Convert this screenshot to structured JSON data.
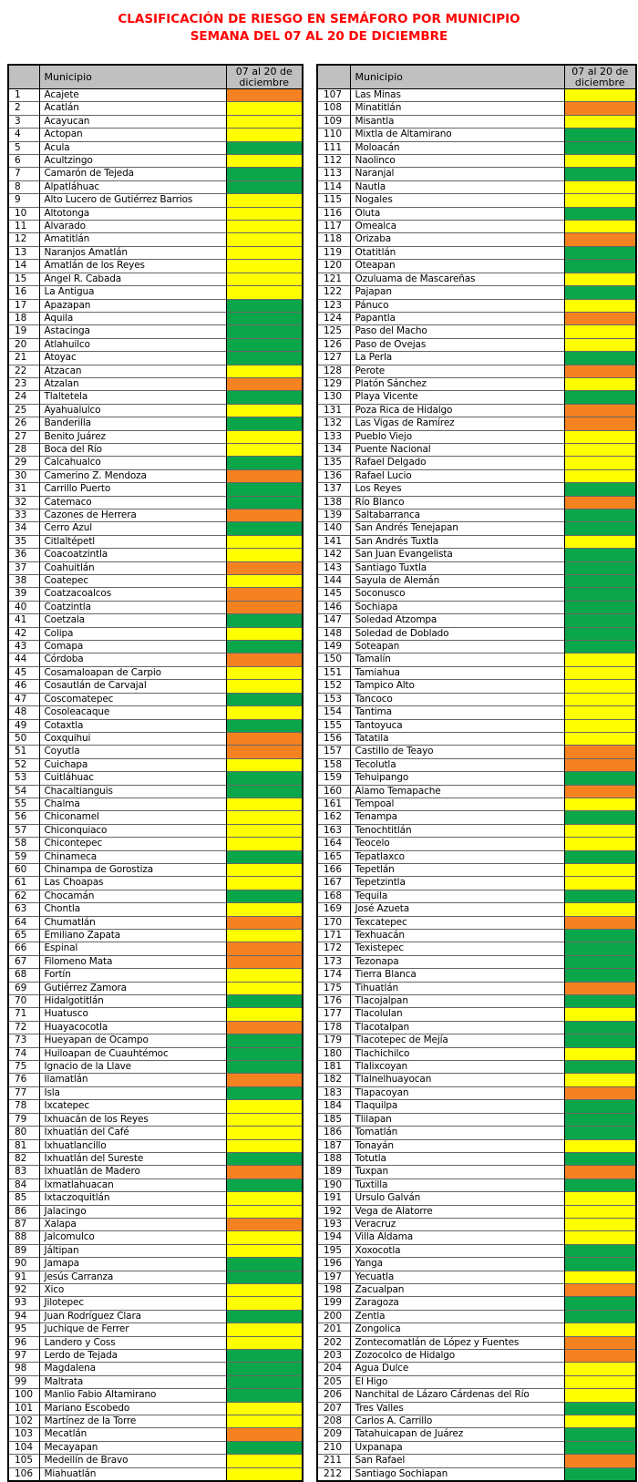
{
  "title": {
    "line1": "CLASIFICACIÓN DE RIESGO EN SEMÁFORO POR MUNICIPIO",
    "line2": "SEMANA DEL 07 AL 20 DE DICIEMBRE"
  },
  "title_color": "#FF0000",
  "column_headers": {
    "municipio": "Municipio",
    "period": "07 al 20 de diciembre"
  },
  "status_colors": {
    "green": "#0CA64A",
    "yellow": "#FFFF00",
    "orange": "#F58220",
    "header_bg": "#C0C0C0"
  },
  "tables": [
    {
      "rows": [
        [
          1,
          "Acajete",
          "orange"
        ],
        [
          2,
          "Acatlán",
          "yellow"
        ],
        [
          3,
          "Acayucan",
          "yellow"
        ],
        [
          4,
          "Actopan",
          "yellow"
        ],
        [
          5,
          "Acula",
          "green"
        ],
        [
          6,
          "Acultzingo",
          "yellow"
        ],
        [
          7,
          "Camarón de Tejeda",
          "green"
        ],
        [
          8,
          "Alpatláhuac",
          "green"
        ],
        [
          9,
          "Alto Lucero de Gutiérrez Barrios",
          "yellow"
        ],
        [
          10,
          "Altotonga",
          "yellow"
        ],
        [
          11,
          "Alvarado",
          "yellow"
        ],
        [
          12,
          "Amatitlán",
          "yellow"
        ],
        [
          13,
          "Naranjos Amatlán",
          "yellow"
        ],
        [
          14,
          "Amatlán de los Reyes",
          "yellow"
        ],
        [
          15,
          "Angel R. Cabada",
          "yellow"
        ],
        [
          16,
          "La Antigua",
          "yellow"
        ],
        [
          17,
          "Apazapan",
          "green"
        ],
        [
          18,
          "Aquila",
          "green"
        ],
        [
          19,
          "Astacinga",
          "green"
        ],
        [
          20,
          "Atlahuilco",
          "green"
        ],
        [
          21,
          "Atoyac",
          "green"
        ],
        [
          22,
          "Atzacan",
          "yellow"
        ],
        [
          23,
          "Atzalan",
          "orange"
        ],
        [
          24,
          "Tlaltetela",
          "green"
        ],
        [
          25,
          "Ayahualulco",
          "yellow"
        ],
        [
          26,
          "Banderilla",
          "green"
        ],
        [
          27,
          "Benito Juárez",
          "yellow"
        ],
        [
          28,
          "Boca del Río",
          "yellow"
        ],
        [
          29,
          "Calcahualco",
          "green"
        ],
        [
          30,
          "Camerino Z. Mendoza",
          "orange"
        ],
        [
          31,
          "Carrillo Puerto",
          "green"
        ],
        [
          32,
          "Catemaco",
          "green"
        ],
        [
          33,
          "Cazones de Herrera",
          "orange"
        ],
        [
          34,
          "Cerro Azul",
          "green"
        ],
        [
          35,
          "Citlaltépetl",
          "yellow"
        ],
        [
          36,
          "Coacoatzintla",
          "yellow"
        ],
        [
          37,
          "Coahuitlán",
          "orange"
        ],
        [
          38,
          "Coatepec",
          "yellow"
        ],
        [
          39,
          "Coatzacoalcos",
          "orange"
        ],
        [
          40,
          "Coatzintla",
          "orange"
        ],
        [
          41,
          "Coetzala",
          "green"
        ],
        [
          42,
          "Colipa",
          "yellow"
        ],
        [
          43,
          "Comapa",
          "green"
        ],
        [
          44,
          "Córdoba",
          "orange"
        ],
        [
          45,
          "Cosamaloapan de Carpio",
          "yellow"
        ],
        [
          46,
          "Cosautlán de Carvajal",
          "yellow"
        ],
        [
          47,
          "Coscomatepec",
          "green"
        ],
        [
          48,
          "Cosoleacaque",
          "yellow"
        ],
        [
          49,
          "Cotaxtla",
          "green"
        ],
        [
          50,
          "Coxquihui",
          "orange"
        ],
        [
          51,
          "Coyutla",
          "orange"
        ],
        [
          52,
          "Cuichapa",
          "yellow"
        ],
        [
          53,
          "Cuitláhuac",
          "green"
        ],
        [
          54,
          "Chacaltianguis",
          "green"
        ],
        [
          55,
          "Chalma",
          "yellow"
        ],
        [
          56,
          "Chiconamel",
          "yellow"
        ],
        [
          57,
          "Chiconquiaco",
          "yellow"
        ],
        [
          58,
          "Chicontepec",
          "yellow"
        ],
        [
          59,
          "Chinameca",
          "green"
        ],
        [
          60,
          "Chinampa de Gorostiza",
          "yellow"
        ],
        [
          61,
          "Las Choapas",
          "yellow"
        ],
        [
          62,
          "Chocamán",
          "green"
        ],
        [
          63,
          "Chontla",
          "yellow"
        ],
        [
          64,
          "Chumatlán",
          "orange"
        ],
        [
          65,
          "Emiliano Zapata",
          "yellow"
        ],
        [
          66,
          "Espinal",
          "orange"
        ],
        [
          67,
          "Filomeno Mata",
          "orange"
        ],
        [
          68,
          "Fortín",
          "yellow"
        ],
        [
          69,
          "Gutiérrez Zamora",
          "yellow"
        ],
        [
          70,
          "Hidalgotitlán",
          "green"
        ],
        [
          71,
          "Huatusco",
          "yellow"
        ],
        [
          72,
          "Huayacocotla",
          "orange"
        ],
        [
          73,
          "Hueyapan de Ocampo",
          "green"
        ],
        [
          74,
          "Huiloapan de Cuauhtémoc",
          "green"
        ],
        [
          75,
          "Ignacio de la Llave",
          "green"
        ],
        [
          76,
          "Ilamatlán",
          "orange"
        ],
        [
          77,
          "Isla",
          "green"
        ],
        [
          78,
          "Ixcatepec",
          "yellow"
        ],
        [
          79,
          "Ixhuacán de los Reyes",
          "yellow"
        ],
        [
          80,
          "Ixhuatlán del Café",
          "yellow"
        ],
        [
          81,
          "Ixhuatlancillo",
          "yellow"
        ],
        [
          82,
          "Ixhuatlán del Sureste",
          "green"
        ],
        [
          83,
          "Ixhuatlán de Madero",
          "orange"
        ],
        [
          84,
          "Ixmatlahuacan",
          "green"
        ],
        [
          85,
          "Ixtaczoquitlán",
          "yellow"
        ],
        [
          86,
          "Jalacingo",
          "yellow"
        ],
        [
          87,
          "Xalapa",
          "orange"
        ],
        [
          88,
          "Jalcomulco",
          "yellow"
        ],
        [
          89,
          "Jáltipan",
          "yellow"
        ],
        [
          90,
          "Jamapa",
          "green"
        ],
        [
          91,
          "Jesús Carranza",
          "green"
        ],
        [
          92,
          "Xico",
          "yellow"
        ],
        [
          93,
          "Jilotepec",
          "yellow"
        ],
        [
          94,
          "Juan Rodríguez Clara",
          "green"
        ],
        [
          95,
          "Juchique de Ferrer",
          "yellow"
        ],
        [
          96,
          "Landero y Coss",
          "yellow"
        ],
        [
          97,
          "Lerdo de Tejada",
          "green"
        ],
        [
          98,
          "Magdalena",
          "green"
        ],
        [
          99,
          "Maltrata",
          "green"
        ],
        [
          100,
          "Manlio Fabio Altamirano",
          "green"
        ],
        [
          101,
          "Mariano Escobedo",
          "yellow"
        ],
        [
          102,
          "Martínez de la Torre",
          "yellow"
        ],
        [
          103,
          "Mecatlán",
          "orange"
        ],
        [
          104,
          "Mecayapan",
          "green"
        ],
        [
          105,
          "Medellín de Bravo",
          "yellow"
        ],
        [
          106,
          "Miahuatlán",
          "yellow"
        ]
      ]
    },
    {
      "rows": [
        [
          107,
          "Las Minas",
          "yellow"
        ],
        [
          108,
          "Minatitlán",
          "orange"
        ],
        [
          109,
          "Misantla",
          "yellow"
        ],
        [
          110,
          "Mixtla de Altamirano",
          "green"
        ],
        [
          111,
          "Moloacán",
          "green"
        ],
        [
          112,
          "Naolinco",
          "yellow"
        ],
        [
          113,
          "Naranjal",
          "green"
        ],
        [
          114,
          "Nautla",
          "yellow"
        ],
        [
          115,
          "Nogales",
          "yellow"
        ],
        [
          116,
          "Oluta",
          "green"
        ],
        [
          117,
          "Omealca",
          "yellow"
        ],
        [
          118,
          "Orizaba",
          "orange"
        ],
        [
          119,
          "Otatitlán",
          "green"
        ],
        [
          120,
          "Oteapan",
          "green"
        ],
        [
          121,
          "Ozuluama de Mascareñas",
          "yellow"
        ],
        [
          122,
          "Pajapan",
          "green"
        ],
        [
          123,
          "Pánuco",
          "yellow"
        ],
        [
          124,
          "Papantla",
          "orange"
        ],
        [
          125,
          "Paso del Macho",
          "yellow"
        ],
        [
          126,
          "Paso de Ovejas",
          "yellow"
        ],
        [
          127,
          "La Perla",
          "green"
        ],
        [
          128,
          "Perote",
          "orange"
        ],
        [
          129,
          "Platón Sánchez",
          "yellow"
        ],
        [
          130,
          "Playa Vicente",
          "green"
        ],
        [
          131,
          "Poza Rica de Hidalgo",
          "orange"
        ],
        [
          132,
          "Las Vigas de Ramírez",
          "orange"
        ],
        [
          133,
          "Pueblo Viejo",
          "yellow"
        ],
        [
          134,
          "Puente Nacional",
          "yellow"
        ],
        [
          135,
          "Rafael Delgado",
          "yellow"
        ],
        [
          136,
          "Rafael Lucio",
          "yellow"
        ],
        [
          137,
          "Los Reyes",
          "green"
        ],
        [
          138,
          "Río Blanco",
          "orange"
        ],
        [
          139,
          "Saltabarranca",
          "green"
        ],
        [
          140,
          "San Andrés Tenejapan",
          "green"
        ],
        [
          141,
          "San Andrés Tuxtla",
          "yellow"
        ],
        [
          142,
          "San Juan Evangelista",
          "green"
        ],
        [
          143,
          "Santiago Tuxtla",
          "green"
        ],
        [
          144,
          "Sayula de Alemán",
          "green"
        ],
        [
          145,
          "Soconusco",
          "green"
        ],
        [
          146,
          "Sochiapa",
          "green"
        ],
        [
          147,
          "Soledad Atzompa",
          "green"
        ],
        [
          148,
          "Soledad de Doblado",
          "green"
        ],
        [
          149,
          "Soteapan",
          "green"
        ],
        [
          150,
          "Tamalín",
          "yellow"
        ],
        [
          151,
          "Tamiahua",
          "yellow"
        ],
        [
          152,
          "Tampico Alto",
          "yellow"
        ],
        [
          153,
          "Tancoco",
          "yellow"
        ],
        [
          154,
          "Tantima",
          "yellow"
        ],
        [
          155,
          "Tantoyuca",
          "yellow"
        ],
        [
          156,
          "Tatatila",
          "yellow"
        ],
        [
          157,
          "Castillo de Teayo",
          "orange"
        ],
        [
          158,
          "Tecolutla",
          "orange"
        ],
        [
          159,
          "Tehuipango",
          "green"
        ],
        [
          160,
          "Álamo Temapache",
          "orange"
        ],
        [
          161,
          "Tempoal",
          "yellow"
        ],
        [
          162,
          "Tenampa",
          "green"
        ],
        [
          163,
          "Tenochtitlán",
          "yellow"
        ],
        [
          164,
          "Teocelo",
          "yellow"
        ],
        [
          165,
          "Tepatlaxco",
          "green"
        ],
        [
          166,
          "Tepetlán",
          "yellow"
        ],
        [
          167,
          "Tepetzintla",
          "yellow"
        ],
        [
          168,
          "Tequila",
          "green"
        ],
        [
          169,
          "José Azueta",
          "yellow"
        ],
        [
          170,
          "Texcatepec",
          "orange"
        ],
        [
          171,
          "Texhuacán",
          "green"
        ],
        [
          172,
          "Texistepec",
          "green"
        ],
        [
          173,
          "Tezonapa",
          "green"
        ],
        [
          174,
          "Tierra Blanca",
          "green"
        ],
        [
          175,
          "Tihuatlán",
          "orange"
        ],
        [
          176,
          "Tlacojalpan",
          "green"
        ],
        [
          177,
          "Tlacolulan",
          "yellow"
        ],
        [
          178,
          "Tlacotalpan",
          "green"
        ],
        [
          179,
          "Tlacotepec de Mejía",
          "green"
        ],
        [
          180,
          "Tlachichilco",
          "yellow"
        ],
        [
          181,
          "Tlalixcoyan",
          "green"
        ],
        [
          182,
          "Tlalnelhuayocan",
          "yellow"
        ],
        [
          183,
          "Tlapacoyan",
          "orange"
        ],
        [
          184,
          "Tlaquilpa",
          "green"
        ],
        [
          185,
          "Tlilapan",
          "green"
        ],
        [
          186,
          "Tomatlán",
          "green"
        ],
        [
          187,
          "Tonayán",
          "yellow"
        ],
        [
          188,
          "Totutla",
          "green"
        ],
        [
          189,
          "Tuxpan",
          "orange"
        ],
        [
          190,
          "Tuxtilla",
          "green"
        ],
        [
          191,
          "Ursulo Galván",
          "yellow"
        ],
        [
          192,
          "Vega de Alatorre",
          "yellow"
        ],
        [
          193,
          "Veracruz",
          "yellow"
        ],
        [
          194,
          "Villa Aldama",
          "yellow"
        ],
        [
          195,
          "Xoxocotla",
          "green"
        ],
        [
          196,
          "Yanga",
          "green"
        ],
        [
          197,
          "Yecuatla",
          "yellow"
        ],
        [
          198,
          "Zacualpan",
          "orange"
        ],
        [
          199,
          "Zaragoza",
          "green"
        ],
        [
          200,
          "Zentla",
          "green"
        ],
        [
          201,
          "Zongolica",
          "yellow"
        ],
        [
          202,
          "Zontecomatlán de López y Fuentes",
          "orange"
        ],
        [
          203,
          "Zozocolco de Hidalgo",
          "orange"
        ],
        [
          204,
          "Agua Dulce",
          "yellow"
        ],
        [
          205,
          "El Higo",
          "yellow"
        ],
        [
          206,
          "Nanchital de Lázaro Cárdenas del Río",
          "yellow"
        ],
        [
          207,
          "Tres Valles",
          "green"
        ],
        [
          208,
          "Carlos A. Carrillo",
          "yellow"
        ],
        [
          209,
          "Tatahuicapan de Juárez",
          "green"
        ],
        [
          210,
          "Uxpanapa",
          "green"
        ],
        [
          211,
          "San Rafael",
          "orange"
        ],
        [
          212,
          "Santiago Sochiapan",
          "green"
        ]
      ]
    }
  ]
}
